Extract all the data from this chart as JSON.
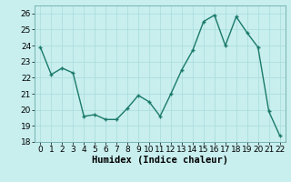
{
  "x": [
    0,
    1,
    2,
    3,
    4,
    5,
    6,
    7,
    8,
    9,
    10,
    11,
    12,
    13,
    14,
    15,
    16,
    17,
    18,
    19,
    20,
    21,
    22
  ],
  "y": [
    23.9,
    22.2,
    22.6,
    22.3,
    19.6,
    19.7,
    19.4,
    19.4,
    20.1,
    20.9,
    20.5,
    19.6,
    21.0,
    22.5,
    23.7,
    25.5,
    25.9,
    24.0,
    25.8,
    24.8,
    23.9,
    19.9,
    18.4
  ],
  "line_color": "#1a7a6a",
  "marker": "+",
  "markersize": 3.5,
  "bg_color": "#c8eeee",
  "grid_color": "#a8dcdc",
  "xlabel": "Humidex (Indice chaleur)",
  "ylim": [
    18,
    26.5
  ],
  "yticks": [
    18,
    19,
    20,
    21,
    22,
    23,
    24,
    25,
    26
  ],
  "xlim": [
    -0.5,
    22.5
  ],
  "xticks": [
    0,
    1,
    2,
    3,
    4,
    5,
    6,
    7,
    8,
    9,
    10,
    11,
    12,
    13,
    14,
    15,
    16,
    17,
    18,
    19,
    20,
    21,
    22
  ],
  "xlabel_fontsize": 7.5,
  "tick_fontsize": 6.5,
  "linewidth": 1.0
}
